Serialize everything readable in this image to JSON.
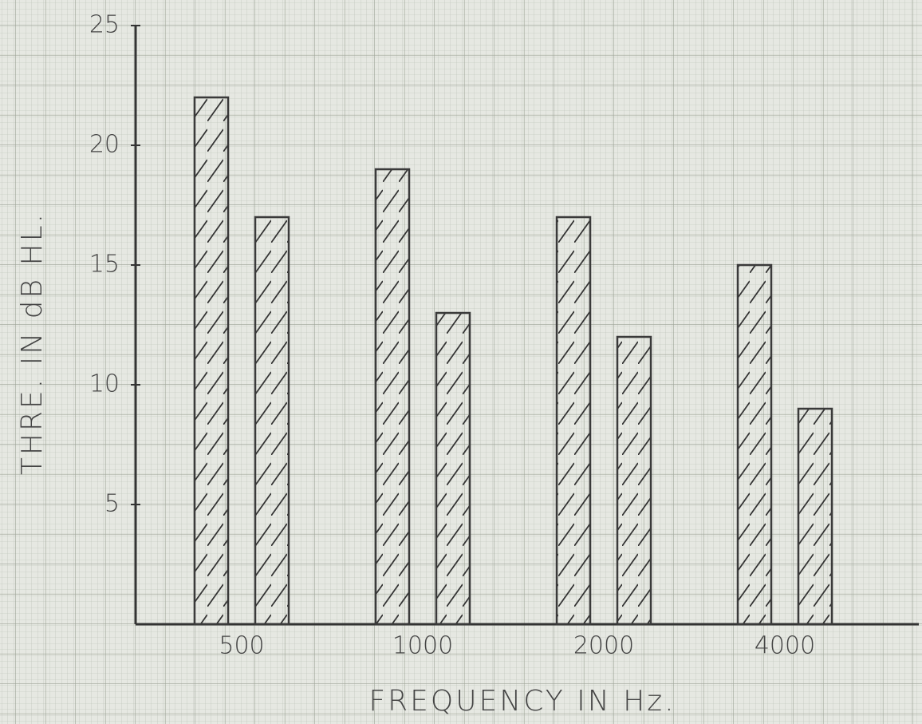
{
  "chart_data": {
    "type": "bar",
    "x_label": "FREQUENCY IN Hz.",
    "y_label": "THRE. IN dB HL.",
    "categories": [
      "500",
      "1000",
      "2000",
      "4000"
    ],
    "series": [
      {
        "color": "#3a3a3a",
        "values": [
          22,
          19,
          17,
          15
        ]
      },
      {
        "color": "#3a3a3a",
        "values": [
          17,
          13,
          12,
          9
        ]
      }
    ],
    "ylim": [
      0,
      25
    ],
    "yticks": [
      5,
      10,
      15,
      20,
      25
    ]
  }
}
